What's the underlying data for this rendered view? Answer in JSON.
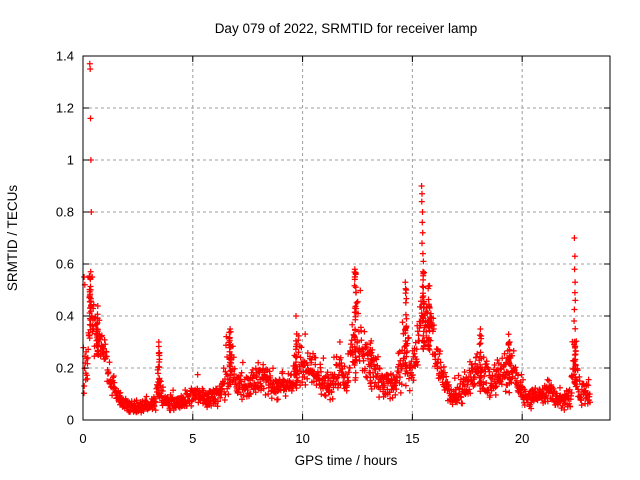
{
  "chart_data": {
    "type": "scatter",
    "title": "Day 079 of 2022, SRMTID for receiver lamp",
    "xlabel": "GPS time / hours",
    "ylabel": "SRMTID / TECUs",
    "xlim": [
      0,
      24
    ],
    "ylim": [
      0,
      1.4
    ],
    "xticks": [
      0,
      5,
      10,
      15,
      20
    ],
    "yticks": [
      0,
      0.2,
      0.4,
      0.6,
      0.8,
      1,
      1.2,
      1.4
    ],
    "grid": true,
    "legend": false,
    "marker": "plus",
    "marker_color": "#ff0000",
    "grid_color": "#9c9c9c",
    "axis_color": "#000000",
    "background_color": "#ffffff",
    "seed": 79,
    "samples_per_hour": 66,
    "t_start": 0.02,
    "t_end": 23.1,
    "envelope_keypoints": [
      [
        0.0,
        0.18,
        0.13
      ],
      [
        0.2,
        0.22,
        0.1
      ],
      [
        0.33,
        0.44,
        0.11
      ],
      [
        0.5,
        0.34,
        0.1
      ],
      [
        0.65,
        0.34,
        0.09
      ],
      [
        0.85,
        0.28,
        0.08
      ],
      [
        1.05,
        0.23,
        0.07
      ],
      [
        1.35,
        0.13,
        0.06
      ],
      [
        1.7,
        0.08,
        0.04
      ],
      [
        2.1,
        0.05,
        0.03
      ],
      [
        3.0,
        0.05,
        0.03
      ],
      [
        3.3,
        0.07,
        0.04
      ],
      [
        3.45,
        0.17,
        0.12
      ],
      [
        3.6,
        0.08,
        0.05
      ],
      [
        4.2,
        0.06,
        0.03
      ],
      [
        4.8,
        0.08,
        0.04
      ],
      [
        5.2,
        0.11,
        0.05
      ],
      [
        5.6,
        0.08,
        0.04
      ],
      [
        6.2,
        0.1,
        0.05
      ],
      [
        6.7,
        0.21,
        0.12
      ],
      [
        7.0,
        0.13,
        0.06
      ],
      [
        7.6,
        0.13,
        0.06
      ],
      [
        8.1,
        0.17,
        0.07
      ],
      [
        8.6,
        0.12,
        0.06
      ],
      [
        9.2,
        0.14,
        0.06
      ],
      [
        9.5,
        0.14,
        0.06
      ],
      [
        9.7,
        0.24,
        0.12
      ],
      [
        9.95,
        0.2,
        0.09
      ],
      [
        10.4,
        0.21,
        0.08
      ],
      [
        10.9,
        0.14,
        0.07
      ],
      [
        11.3,
        0.12,
        0.06
      ],
      [
        11.7,
        0.2,
        0.09
      ],
      [
        12.05,
        0.13,
        0.06
      ],
      [
        12.4,
        0.36,
        0.2
      ],
      [
        12.7,
        0.26,
        0.13
      ],
      [
        13.1,
        0.22,
        0.1
      ],
      [
        13.6,
        0.14,
        0.07
      ],
      [
        14.2,
        0.13,
        0.06
      ],
      [
        14.7,
        0.27,
        0.16
      ],
      [
        14.95,
        0.18,
        0.08
      ],
      [
        15.25,
        0.28,
        0.14
      ],
      [
        15.5,
        0.42,
        0.16
      ],
      [
        15.8,
        0.38,
        0.14
      ],
      [
        16.1,
        0.24,
        0.1
      ],
      [
        16.5,
        0.13,
        0.06
      ],
      [
        16.9,
        0.09,
        0.05
      ],
      [
        17.5,
        0.13,
        0.06
      ],
      [
        18.1,
        0.21,
        0.1
      ],
      [
        18.5,
        0.14,
        0.07
      ],
      [
        18.9,
        0.17,
        0.08
      ],
      [
        19.4,
        0.21,
        0.1
      ],
      [
        19.8,
        0.13,
        0.06
      ],
      [
        20.2,
        0.09,
        0.05
      ],
      [
        20.7,
        0.08,
        0.04
      ],
      [
        21.2,
        0.12,
        0.06
      ],
      [
        21.7,
        0.07,
        0.04
      ],
      [
        22.2,
        0.08,
        0.05
      ],
      [
        22.4,
        0.24,
        0.18
      ],
      [
        22.55,
        0.12,
        0.07
      ],
      [
        22.8,
        0.1,
        0.06
      ],
      [
        23.1,
        0.09,
        0.05
      ]
    ],
    "spike_columns": [
      [
        0.33,
        0.3,
        0.56,
        26
      ],
      [
        0.65,
        0.25,
        0.44,
        18
      ],
      [
        3.45,
        0.09,
        0.29,
        18
      ],
      [
        6.7,
        0.1,
        0.34,
        20
      ],
      [
        9.7,
        0.12,
        0.36,
        18
      ],
      [
        12.4,
        0.15,
        0.57,
        30
      ],
      [
        13.1,
        0.14,
        0.32,
        14
      ],
      [
        14.7,
        0.14,
        0.52,
        20
      ],
      [
        15.5,
        0.25,
        0.58,
        28
      ],
      [
        15.75,
        0.25,
        0.52,
        22
      ],
      [
        18.1,
        0.1,
        0.33,
        14
      ],
      [
        19.4,
        0.1,
        0.32,
        14
      ],
      [
        22.4,
        0.1,
        0.46,
        22
      ]
    ],
    "outlier_points": [
      [
        0.31,
        1.37
      ],
      [
        0.33,
        1.35
      ],
      [
        0.34,
        1.16
      ],
      [
        0.36,
        1.0
      ],
      [
        0.38,
        0.8
      ],
      [
        0.35,
        0.57
      ],
      [
        0.42,
        0.55
      ],
      [
        0.05,
        0.55
      ],
      [
        0.08,
        0.52
      ],
      [
        3.45,
        0.3
      ],
      [
        6.7,
        0.35
      ],
      [
        9.7,
        0.4
      ],
      [
        11.7,
        0.3
      ],
      [
        12.38,
        0.58
      ],
      [
        12.42,
        0.56
      ],
      [
        14.68,
        0.53
      ],
      [
        14.72,
        0.5
      ],
      [
        15.42,
        0.9
      ],
      [
        15.44,
        0.87
      ],
      [
        15.43,
        0.84
      ],
      [
        15.46,
        0.8
      ],
      [
        15.45,
        0.76
      ],
      [
        15.47,
        0.72
      ],
      [
        15.44,
        0.68
      ],
      [
        15.48,
        0.64
      ],
      [
        15.5,
        0.61
      ],
      [
        18.1,
        0.35
      ],
      [
        19.38,
        0.33
      ],
      [
        22.38,
        0.7
      ],
      [
        22.4,
        0.63
      ],
      [
        22.39,
        0.58
      ],
      [
        22.41,
        0.53
      ],
      [
        22.4,
        0.49
      ],
      [
        22.42,
        0.46
      ]
    ]
  }
}
